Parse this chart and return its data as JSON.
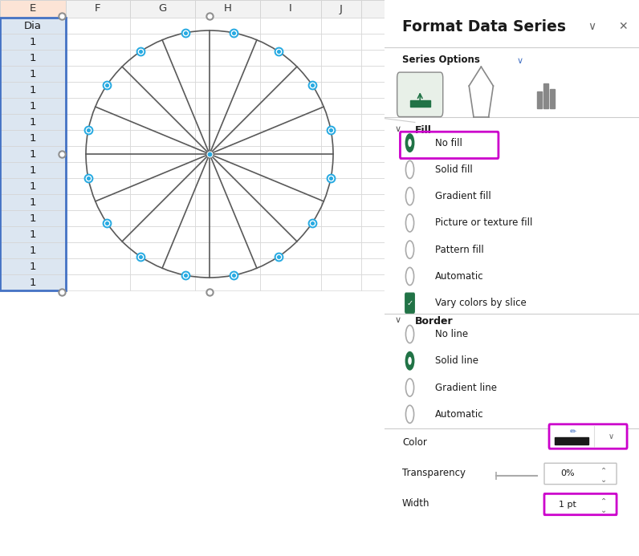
{
  "fig_w": 7.96,
  "fig_h": 6.93,
  "dpi": 100,
  "n_slices": 16,
  "pie_border_color": "#595959",
  "pie_border_lw": 1.2,
  "bg_color": "#ffffff",
  "grid_color": "#d4d4d4",
  "col_header_bg": "#f2f2f2",
  "col_header_selected_bg": "#fce4d6",
  "selection_col_bg": "#dce6f1",
  "selection_col_border": "#4472c4",
  "panel_bg": "#f3f3f3",
  "panel_title": "Format Data Series",
  "accent_green": "#217346",
  "accent_magenta": "#cc00cc",
  "handle_gray": "#909090",
  "handle_blue": "#29ABE2",
  "col_names": [
    "E",
    "F",
    "G",
    "H",
    "I",
    "J"
  ],
  "row_values": [
    "Dia",
    "1",
    "1",
    "1",
    "1",
    "1",
    "1",
    "1",
    "1",
    "1",
    "1",
    "1",
    "1",
    "1",
    "1",
    "1",
    "1"
  ],
  "fill_options": [
    "No fill",
    "Solid fill",
    "Gradient fill",
    "Picture or texture fill",
    "Pattern fill",
    "Automatic",
    "Vary colors by slice"
  ],
  "fill_selected": 0,
  "fill_checkbox_idx": 6,
  "border_options": [
    "No line",
    "Solid line",
    "Gradient line",
    "Automatic"
  ],
  "border_selected": 1,
  "panel_split": 0.6015
}
